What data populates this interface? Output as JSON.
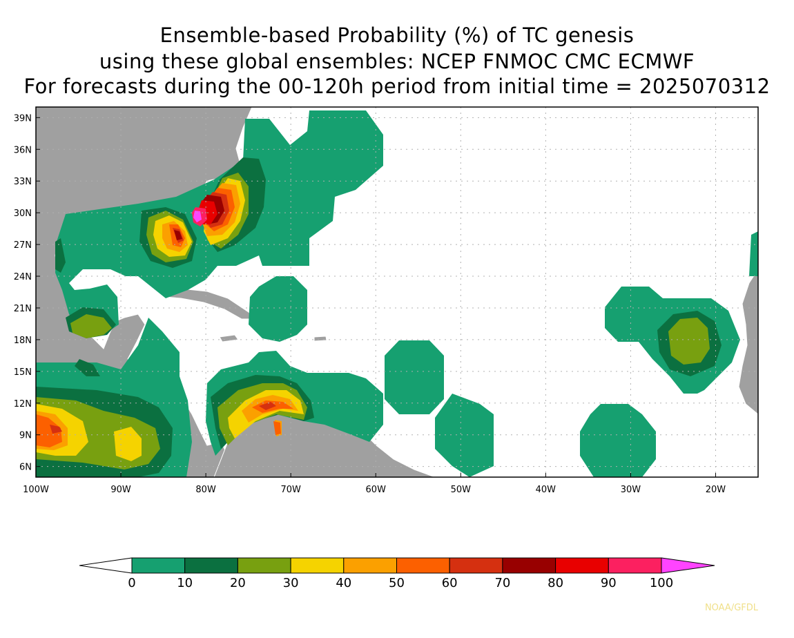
{
  "title": {
    "line1": "Ensemble-based Probability (%) of TC genesis",
    "line2": "using these global ensembles:   NCEP FNMOC CMC ECMWF",
    "line3": "For forecasts during the 00-120h period from initial time = 2025070312"
  },
  "map": {
    "lat_ticks": [
      "39N",
      "36N",
      "33N",
      "30N",
      "27N",
      "24N",
      "21N",
      "18N",
      "15N",
      "12N",
      "9N",
      "6N"
    ],
    "lon_ticks": [
      "100W",
      "90W",
      "80W",
      "70W",
      "60W",
      "50W",
      "40W",
      "30W",
      "20W"
    ],
    "land_color": "#a0a0a0",
    "grid": "dotted"
  },
  "colorbar": {
    "labels": [
      "0",
      "10",
      "20",
      "30",
      "40",
      "50",
      "60",
      "70",
      "80",
      "90",
      "100"
    ],
    "colors": [
      "#16a070",
      "#0b7040",
      "#78a010",
      "#f5d300",
      "#fba000",
      "#fc6000",
      "#d53010",
      "#980000",
      "#e80000",
      "#fc2060"
    ],
    "over_color": "#ff44ff",
    "under_color": "#ffffff"
  },
  "credit": "NOAA/GFDL"
}
